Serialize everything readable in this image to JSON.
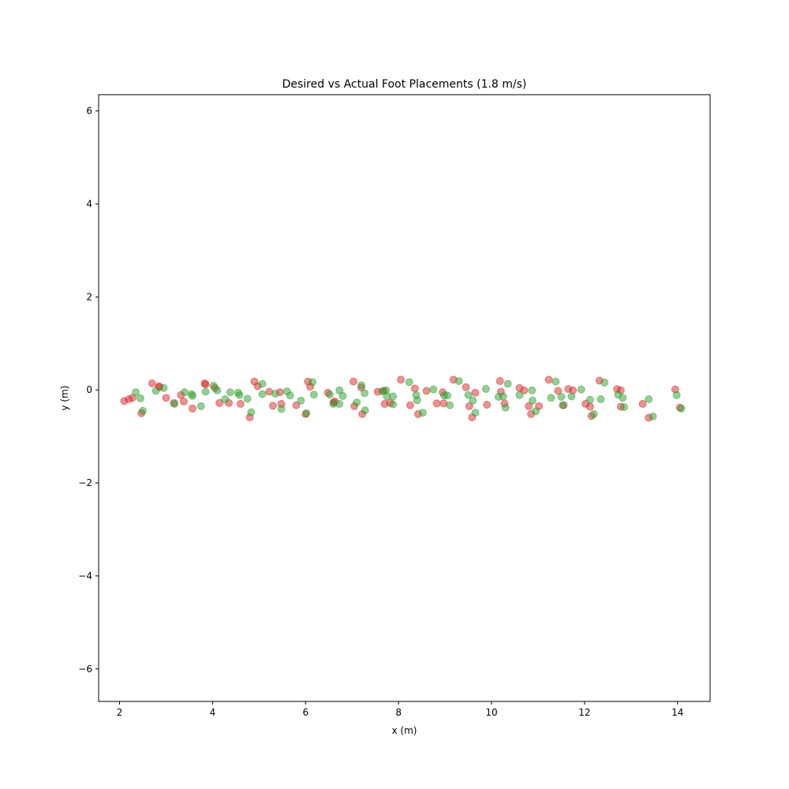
{
  "chart_data": {
    "type": "scatter",
    "title": "Desired vs Actual Foot Placements (1.8 m/s)",
    "xlabel": "x (m)",
    "ylabel": "y (m)",
    "xlim": [
      1.55,
      14.7
    ],
    "ylim": [
      -6.7,
      6.35
    ],
    "xticks": [
      2,
      4,
      6,
      8,
      10,
      12,
      14
    ],
    "xtick_labels": [
      "2",
      "4",
      "6",
      "8",
      "10",
      "12",
      "14"
    ],
    "yticks": [
      -6,
      -4,
      -2,
      0,
      2,
      4,
      6
    ],
    "ytick_labels": [
      "−6",
      "−4",
      "−2",
      "0",
      "2",
      "4",
      "6"
    ],
    "grid": false,
    "legend": "none",
    "series": [
      {
        "color": "#d62728",
        "points": [
          [
            2.1,
            -0.24
          ],
          [
            2.2,
            -0.2
          ],
          [
            2.28,
            -0.17
          ],
          [
            2.47,
            -0.5
          ],
          [
            2.7,
            0.14
          ],
          [
            2.85,
            0.08
          ],
          [
            2.86,
            0.06
          ],
          [
            3.0,
            -0.17
          ],
          [
            3.17,
            -0.28
          ],
          [
            3.32,
            -0.11
          ],
          [
            3.38,
            -0.25
          ],
          [
            3.57,
            -0.4
          ],
          [
            3.83,
            0.14
          ],
          [
            3.85,
            0.12
          ],
          [
            4.05,
            0.04
          ],
          [
            4.15,
            -0.28
          ],
          [
            4.35,
            -0.28
          ],
          [
            4.6,
            -0.3
          ],
          [
            4.8,
            -0.59
          ],
          [
            4.9,
            0.18
          ],
          [
            4.97,
            0.08
          ],
          [
            5.22,
            -0.04
          ],
          [
            5.3,
            -0.34
          ],
          [
            5.45,
            -0.05
          ],
          [
            5.48,
            -0.3
          ],
          [
            5.8,
            -0.33
          ],
          [
            6.0,
            -0.52
          ],
          [
            6.05,
            0.18
          ],
          [
            6.1,
            0.07
          ],
          [
            6.48,
            -0.06
          ],
          [
            6.6,
            -0.27
          ],
          [
            6.63,
            -0.25
          ],
          [
            7.03,
            0.18
          ],
          [
            7.05,
            -0.35
          ],
          [
            7.2,
            0.05
          ],
          [
            7.22,
            -0.52
          ],
          [
            7.55,
            -0.04
          ],
          [
            7.68,
            -0.02
          ],
          [
            7.7,
            -0.3
          ],
          [
            7.82,
            -0.28
          ],
          [
            8.05,
            0.22
          ],
          [
            8.25,
            -0.33
          ],
          [
            8.35,
            0.03
          ],
          [
            8.42,
            -0.52
          ],
          [
            8.6,
            -0.02
          ],
          [
            8.82,
            -0.29
          ],
          [
            8.95,
            -0.05
          ],
          [
            8.97,
            -0.29
          ],
          [
            9.18,
            0.22
          ],
          [
            9.45,
            0.06
          ],
          [
            9.52,
            -0.35
          ],
          [
            9.58,
            -0.59
          ],
          [
            9.65,
            -0.06
          ],
          [
            9.9,
            -0.32
          ],
          [
            10.18,
            0.19
          ],
          [
            10.2,
            -0.04
          ],
          [
            10.28,
            -0.29
          ],
          [
            10.6,
            0.04
          ],
          [
            10.7,
            -0.01
          ],
          [
            10.8,
            -0.35
          ],
          [
            10.85,
            -0.52
          ],
          [
            11.02,
            -0.35
          ],
          [
            11.23,
            0.22
          ],
          [
            11.43,
            -0.02
          ],
          [
            11.55,
            -0.33
          ],
          [
            11.65,
            0.02
          ],
          [
            11.75,
            -0.01
          ],
          [
            12.02,
            -0.3
          ],
          [
            12.12,
            -0.36
          ],
          [
            12.15,
            -0.56
          ],
          [
            12.32,
            0.2
          ],
          [
            12.7,
            0.02
          ],
          [
            12.78,
            -0.01
          ],
          [
            12.78,
            -0.36
          ],
          [
            13.25,
            -0.3
          ],
          [
            13.38,
            -0.6
          ],
          [
            13.95,
            0.01
          ],
          [
            14.05,
            -0.38
          ]
        ]
      },
      {
        "color": "#2ca02c",
        "points": [
          [
            2.35,
            -0.05
          ],
          [
            2.45,
            -0.18
          ],
          [
            2.5,
            -0.45
          ],
          [
            2.78,
            -0.02
          ],
          [
            2.95,
            0.04
          ],
          [
            3.18,
            -0.3
          ],
          [
            3.4,
            -0.05
          ],
          [
            3.55,
            -0.09
          ],
          [
            3.57,
            -0.13
          ],
          [
            3.75,
            -0.35
          ],
          [
            3.85,
            -0.04
          ],
          [
            4.02,
            0.09
          ],
          [
            4.1,
            -0.01
          ],
          [
            4.27,
            -0.2
          ],
          [
            4.38,
            -0.05
          ],
          [
            4.55,
            -0.06
          ],
          [
            4.58,
            -0.11
          ],
          [
            4.75,
            -0.19
          ],
          [
            4.83,
            -0.48
          ],
          [
            5.07,
            0.13
          ],
          [
            5.07,
            -0.09
          ],
          [
            5.35,
            -0.08
          ],
          [
            5.48,
            -0.41
          ],
          [
            5.6,
            -0.03
          ],
          [
            5.67,
            -0.12
          ],
          [
            5.9,
            -0.23
          ],
          [
            6.02,
            -0.5
          ],
          [
            6.15,
            0.17
          ],
          [
            6.18,
            -0.1
          ],
          [
            6.52,
            -0.1
          ],
          [
            6.6,
            -0.3
          ],
          [
            6.73,
            -0.01
          ],
          [
            6.73,
            -0.3
          ],
          [
            6.8,
            -0.13
          ],
          [
            7.1,
            -0.27
          ],
          [
            7.2,
            0.1
          ],
          [
            7.27,
            -0.07
          ],
          [
            7.28,
            -0.44
          ],
          [
            7.65,
            -0.03
          ],
          [
            7.73,
            -0.01
          ],
          [
            7.75,
            -0.14
          ],
          [
            7.88,
            -0.31
          ],
          [
            7.88,
            -0.14
          ],
          [
            8.23,
            0.17
          ],
          [
            8.38,
            -0.11
          ],
          [
            8.4,
            -0.22
          ],
          [
            8.52,
            -0.49
          ],
          [
            8.75,
            0.01
          ],
          [
            8.98,
            -0.12
          ],
          [
            9.05,
            -0.12
          ],
          [
            9.1,
            -0.33
          ],
          [
            9.3,
            0.19
          ],
          [
            9.5,
            -0.11
          ],
          [
            9.6,
            -0.23
          ],
          [
            9.65,
            -0.49
          ],
          [
            9.88,
            0.02
          ],
          [
            10.15,
            -0.15
          ],
          [
            10.25,
            -0.14
          ],
          [
            10.3,
            -0.38
          ],
          [
            10.35,
            0.13
          ],
          [
            10.6,
            -0.11
          ],
          [
            10.87,
            -0.01
          ],
          [
            10.88,
            -0.23
          ],
          [
            10.95,
            -0.46
          ],
          [
            11.28,
            -0.17
          ],
          [
            11.38,
            0.18
          ],
          [
            11.5,
            -0.15
          ],
          [
            11.53,
            -0.33
          ],
          [
            11.72,
            -0.14
          ],
          [
            11.93,
            0.01
          ],
          [
            12.12,
            -0.21
          ],
          [
            12.2,
            -0.52
          ],
          [
            12.35,
            -0.2
          ],
          [
            12.43,
            0.16
          ],
          [
            12.72,
            -0.1
          ],
          [
            12.82,
            -0.17
          ],
          [
            12.85,
            -0.37
          ],
          [
            13.38,
            -0.2
          ],
          [
            13.47,
            -0.57
          ],
          [
            13.98,
            -0.11
          ],
          [
            14.08,
            -0.4
          ]
        ]
      }
    ]
  }
}
